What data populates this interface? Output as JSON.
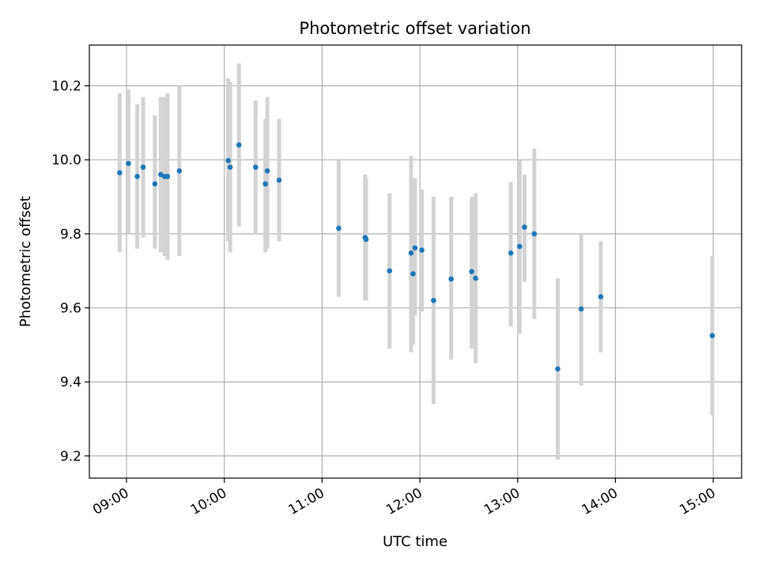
{
  "chart_data": {
    "type": "scatter",
    "title": "Photometric offset variation",
    "xlabel": "UTC time",
    "ylabel": "Photometric offset",
    "xlim_hours": [
      8.62,
      15.29
    ],
    "ylim": [
      9.14,
      10.31
    ],
    "grid": true,
    "x_ticks": [
      {
        "value": 9.0,
        "label": "09:00"
      },
      {
        "value": 10.0,
        "label": "10:00"
      },
      {
        "value": 11.0,
        "label": "11:00"
      },
      {
        "value": 12.0,
        "label": "12:00"
      },
      {
        "value": 13.0,
        "label": "13:00"
      },
      {
        "value": 14.0,
        "label": "14:00"
      },
      {
        "value": 15.0,
        "label": "15:00"
      }
    ],
    "y_ticks": [
      {
        "value": 9.2,
        "label": "9.2"
      },
      {
        "value": 9.4,
        "label": "9.4"
      },
      {
        "value": 9.6,
        "label": "9.6"
      },
      {
        "value": 9.8,
        "label": "9.8"
      },
      {
        "value": 10.0,
        "label": "10.0"
      },
      {
        "value": 10.2,
        "label": "10.2"
      }
    ],
    "point_color": "#1f77b4",
    "errorbar_color": "#d3d3d3",
    "points": [
      {
        "t": 8.93,
        "y": 9.965,
        "lo": 9.75,
        "hi": 10.18
      },
      {
        "t": 9.02,
        "y": 9.99,
        "lo": 9.8,
        "hi": 10.19
      },
      {
        "t": 9.11,
        "y": 9.955,
        "lo": 9.76,
        "hi": 10.15
      },
      {
        "t": 9.17,
        "y": 9.98,
        "lo": 9.79,
        "hi": 10.17
      },
      {
        "t": 9.29,
        "y": 9.935,
        "lo": 9.76,
        "hi": 10.12
      },
      {
        "t": 9.35,
        "y": 9.96,
        "lo": 9.75,
        "hi": 10.17
      },
      {
        "t": 9.39,
        "y": 9.955,
        "lo": 9.74,
        "hi": 10.17
      },
      {
        "t": 9.42,
        "y": 9.955,
        "lo": 9.73,
        "hi": 10.18
      },
      {
        "t": 9.54,
        "y": 9.97,
        "lo": 9.74,
        "hi": 10.2
      },
      {
        "t": 10.04,
        "y": 9.998,
        "lo": 9.78,
        "hi": 10.22
      },
      {
        "t": 10.06,
        "y": 9.98,
        "lo": 9.75,
        "hi": 10.21
      },
      {
        "t": 10.15,
        "y": 10.04,
        "lo": 9.82,
        "hi": 10.26
      },
      {
        "t": 10.32,
        "y": 9.98,
        "lo": 9.8,
        "hi": 10.16
      },
      {
        "t": 10.42,
        "y": 9.935,
        "lo": 9.75,
        "hi": 10.11
      },
      {
        "t": 10.44,
        "y": 9.97,
        "lo": 9.76,
        "hi": 10.17
      },
      {
        "t": 10.56,
        "y": 9.945,
        "lo": 9.78,
        "hi": 10.11
      },
      {
        "t": 11.17,
        "y": 9.815,
        "lo": 9.63,
        "hi": 10.0
      },
      {
        "t": 11.44,
        "y": 9.79,
        "lo": 9.62,
        "hi": 9.96
      },
      {
        "t": 11.45,
        "y": 9.785,
        "lo": 9.62,
        "hi": 9.95
      },
      {
        "t": 11.69,
        "y": 9.7,
        "lo": 9.49,
        "hi": 9.91
      },
      {
        "t": 11.91,
        "y": 9.748,
        "lo": 9.48,
        "hi": 10.01
      },
      {
        "t": 11.93,
        "y": 9.692,
        "lo": 9.5,
        "hi": 9.88
      },
      {
        "t": 11.95,
        "y": 9.762,
        "lo": 9.58,
        "hi": 9.95
      },
      {
        "t": 12.02,
        "y": 9.756,
        "lo": 9.59,
        "hi": 9.92
      },
      {
        "t": 12.14,
        "y": 9.62,
        "lo": 9.34,
        "hi": 9.9
      },
      {
        "t": 12.32,
        "y": 9.678,
        "lo": 9.46,
        "hi": 9.9
      },
      {
        "t": 12.53,
        "y": 9.698,
        "lo": 9.49,
        "hi": 9.9
      },
      {
        "t": 12.57,
        "y": 9.68,
        "lo": 9.45,
        "hi": 9.91
      },
      {
        "t": 12.93,
        "y": 9.748,
        "lo": 9.55,
        "hi": 9.94
      },
      {
        "t": 13.02,
        "y": 9.766,
        "lo": 9.53,
        "hi": 10.0
      },
      {
        "t": 13.07,
        "y": 9.818,
        "lo": 9.67,
        "hi": 9.96
      },
      {
        "t": 13.17,
        "y": 9.8,
        "lo": 9.57,
        "hi": 10.03
      },
      {
        "t": 13.41,
        "y": 9.435,
        "lo": 9.19,
        "hi": 9.68
      },
      {
        "t": 13.65,
        "y": 9.597,
        "lo": 9.39,
        "hi": 9.8
      },
      {
        "t": 13.85,
        "y": 9.63,
        "lo": 9.48,
        "hi": 9.78
      },
      {
        "t": 14.99,
        "y": 9.525,
        "lo": 9.31,
        "hi": 9.74
      }
    ]
  }
}
